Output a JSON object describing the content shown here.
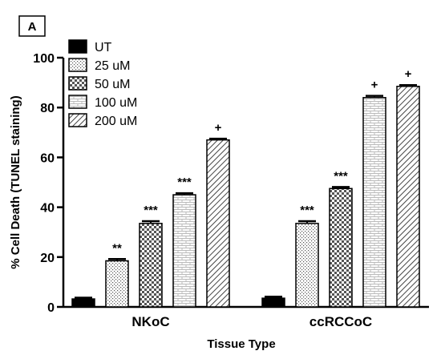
{
  "panel_label": "A",
  "chart_data": {
    "type": "bar",
    "categories": [
      "NKoC",
      "ccRCCoC"
    ],
    "xlabel": "Tissue Type",
    "ylabel": "% Cell Death (TUNEL staining)",
    "ylim": [
      0,
      100
    ],
    "yticks": [
      0,
      20,
      40,
      60,
      80,
      100
    ],
    "legend_position": "top-left",
    "grid": false,
    "series": [
      {
        "name": "UT",
        "values": [
          3.2,
          3.5
        ],
        "errors": [
          0.5,
          0.6
        ],
        "annotations": [
          "",
          ""
        ],
        "pattern": "solid-black"
      },
      {
        "name": "25 uM",
        "values": [
          18.5,
          33.5
        ],
        "errors": [
          0.7,
          0.9
        ],
        "annotations": [
          "**",
          "***"
        ],
        "pattern": "dots"
      },
      {
        "name": "50 uM",
        "values": [
          33.5,
          47.5
        ],
        "errors": [
          0.9,
          0.6
        ],
        "annotations": [
          "***",
          "***"
        ],
        "pattern": "checker"
      },
      {
        "name": "100 uM",
        "values": [
          45.0,
          84.0
        ],
        "errors": [
          0.6,
          0.7
        ],
        "annotations": [
          "***",
          "+"
        ],
        "pattern": "brick"
      },
      {
        "name": "200 uM",
        "values": [
          67.0,
          88.5
        ],
        "errors": [
          0.5,
          0.5
        ],
        "annotations": [
          "+",
          "+"
        ],
        "pattern": "diagonal"
      }
    ]
  }
}
